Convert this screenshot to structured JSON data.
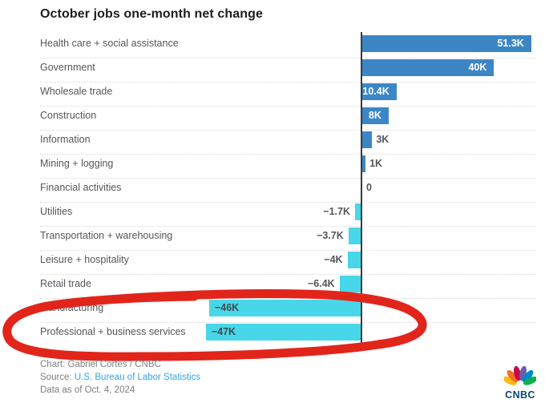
{
  "title": "October jobs one-month net change",
  "chart_data": {
    "type": "bar",
    "orientation": "horizontal",
    "title": "October jobs one-month net change",
    "unit": "thousands of jobs (K)",
    "xlim": [
      -47,
      51.3
    ],
    "grid": "dotted row separators, zero axis line",
    "legend": "none",
    "categories": [
      "Health care + social assistance",
      "Government",
      "Wholesale trade",
      "Construction",
      "Information",
      "Mining + logging",
      "Financial activities",
      "Utilities",
      "Transportation + warehousing",
      "Leisure + hospitality",
      "Retail trade",
      "Manufacturing",
      "Professional + business services"
    ],
    "values": [
      51.3,
      40,
      10.4,
      8,
      3,
      1,
      0,
      -1.7,
      -3.7,
      -4,
      -6.4,
      -46,
      -47
    ],
    "value_labels": [
      "51.3K",
      "40K",
      "10.4K",
      "8K",
      "3K",
      "1K",
      "0",
      "−1.7K",
      "−3.7K",
      "−4K",
      "−6.4K",
      "−46K",
      "−47K"
    ]
  },
  "colors": {
    "positive_bar": "#3d86c6",
    "negative_bar": "#47d7e8",
    "axis": "#3b3b3b",
    "gridline": "#d9d9d9",
    "category_text": "#53565a",
    "value_inside_positive": "#ffffff",
    "value_inside_negative": "#3e4a52",
    "title_text": "#1d1d1d",
    "footer_text": "#7b7e81",
    "link": "#35a3dc",
    "annotation_red": "#e1251b"
  },
  "annotation": {
    "shape": "hand-drawn ellipse",
    "color": "#e1251b",
    "encircles": [
      "Manufacturing",
      "Professional + business services"
    ]
  },
  "footer": {
    "credit": "Chart: Gabriel Cortes / CNBC",
    "source_prefix": "Source: ",
    "source_link": "U.S. Bureau of Labor Statistics",
    "data_note": "Data as of Oct. 4, 2024"
  },
  "logo": {
    "text": "CNBC",
    "peacock_colors": [
      "#fbb914",
      "#f37021",
      "#cc004c",
      "#6460aa",
      "#0089d0",
      "#0db14b"
    ]
  }
}
